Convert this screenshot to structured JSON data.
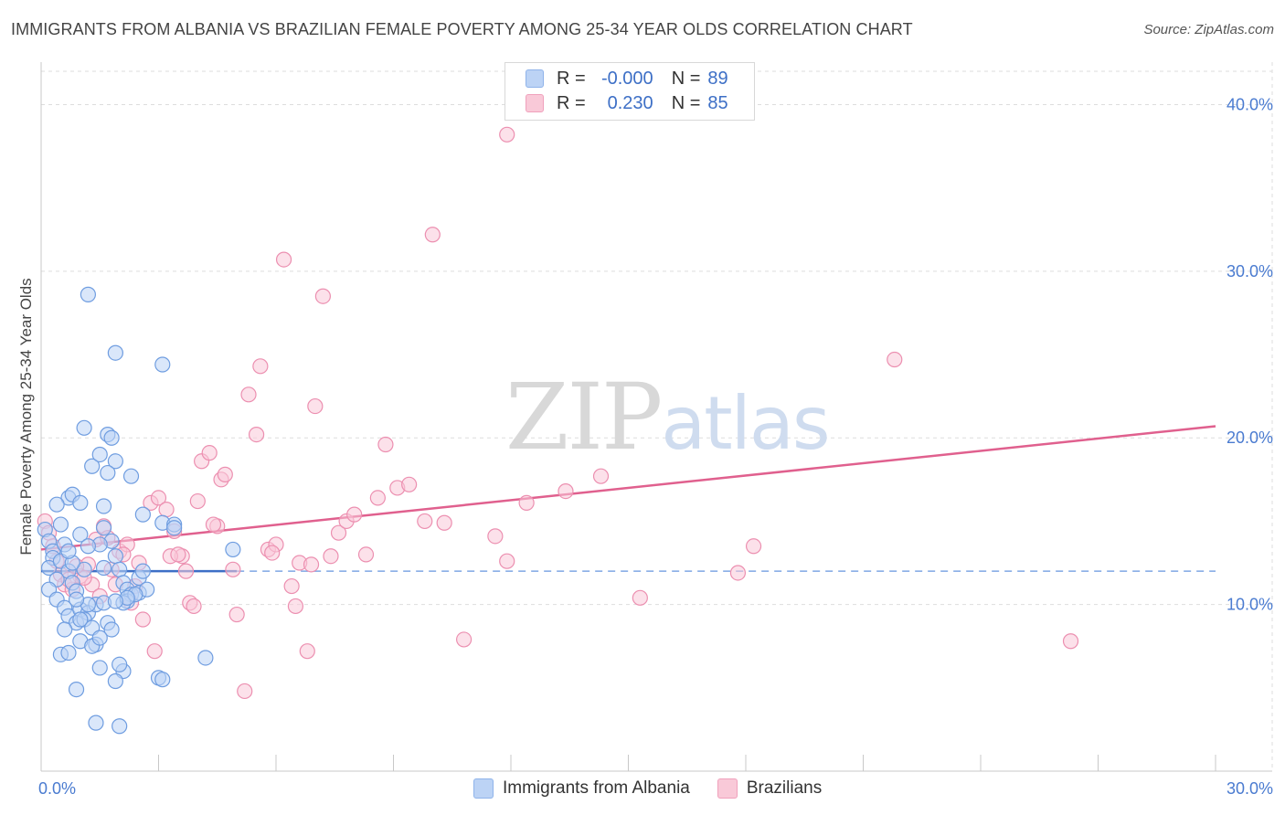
{
  "title": "IMMIGRANTS FROM ALBANIA VS BRAZILIAN FEMALE POVERTY AMONG 25-34 YEAR OLDS CORRELATION CHART",
  "source": "Source: ZipAtlas.com",
  "watermark": {
    "zip": "ZIP",
    "atlas": "atlas"
  },
  "legend": {
    "rows": [
      {
        "r_label": "R =",
        "r_value": "-0.000",
        "n_label": "N =",
        "n_value": "89",
        "color": "#8fb3ea",
        "fill": "#bcd3f5"
      },
      {
        "r_label": "R =",
        "r_value": "0.230",
        "n_label": "N =",
        "n_value": "85",
        "color": "#f0a1bc",
        "fill": "#f9c9d8"
      }
    ]
  },
  "bottom_legend": [
    {
      "label": "Immigrants from Albania",
      "color": "#8fb3ea",
      "fill": "#bcd3f5"
    },
    {
      "label": "Brazilians",
      "color": "#f0a1bc",
      "fill": "#f9c9d8"
    }
  ],
  "chart_data": {
    "type": "scatter",
    "title": "IMMIGRANTS FROM ALBANIA VS BRAZILIAN FEMALE POVERTY AMONG 25-34 YEAR OLDS CORRELATION CHART",
    "xlabel": "",
    "ylabel": "Female Poverty Among 25-34 Year Olds",
    "xlim": [
      0,
      30
    ],
    "ylim": [
      0,
      42
    ],
    "x_tick_labels": [
      "0.0%",
      "30.0%"
    ],
    "y_ticks": [
      10,
      20,
      30,
      40
    ],
    "y_tick_labels": [
      "10.0%",
      "20.0%",
      "30.0%",
      "40.0%"
    ],
    "series": [
      {
        "name": "Immigrants from Albania",
        "color": "#6f9de0",
        "fill": "#bcd3f5",
        "trend": {
          "x": [
            0,
            5
          ],
          "y": [
            12.0,
            12.0
          ],
          "dash_to_x": 30,
          "color": "#3d6fc6"
        },
        "points": [
          [
            0.1,
            14.5
          ],
          [
            0.2,
            13.8
          ],
          [
            0.3,
            13.2
          ],
          [
            0.3,
            12.8
          ],
          [
            0.2,
            12.2
          ],
          [
            0.4,
            11.5
          ],
          [
            0.2,
            10.9
          ],
          [
            0.5,
            14.8
          ],
          [
            0.6,
            13.6
          ],
          [
            0.5,
            12.6
          ],
          [
            0.7,
            12.0
          ],
          [
            0.8,
            11.3
          ],
          [
            0.9,
            10.8
          ],
          [
            0.4,
            10.3
          ],
          [
            0.6,
            9.8
          ],
          [
            0.7,
            9.3
          ],
          [
            1.0,
            9.7
          ],
          [
            1.2,
            9.5
          ],
          [
            0.9,
            8.9
          ],
          [
            1.1,
            9.1
          ],
          [
            0.6,
            8.5
          ],
          [
            1.3,
            8.6
          ],
          [
            1.0,
            7.8
          ],
          [
            1.4,
            7.6
          ],
          [
            0.5,
            7.0
          ],
          [
            0.7,
            7.1
          ],
          [
            1.5,
            6.2
          ],
          [
            2.1,
            6.0
          ],
          [
            1.3,
            7.5
          ],
          [
            2.0,
            6.4
          ],
          [
            0.9,
            4.9
          ],
          [
            1.9,
            5.4
          ],
          [
            1.4,
            2.9
          ],
          [
            2.0,
            2.7
          ],
          [
            3.0,
            5.6
          ],
          [
            3.1,
            5.5
          ],
          [
            4.2,
            6.8
          ],
          [
            1.1,
            20.6
          ],
          [
            1.7,
            20.2
          ],
          [
            1.8,
            20.0
          ],
          [
            1.3,
            18.3
          ],
          [
            1.5,
            19.0
          ],
          [
            1.9,
            18.6
          ],
          [
            1.7,
            17.9
          ],
          [
            2.3,
            17.7
          ],
          [
            0.7,
            16.4
          ],
          [
            0.8,
            16.6
          ],
          [
            1.0,
            16.1
          ],
          [
            1.6,
            15.9
          ],
          [
            0.4,
            16.0
          ],
          [
            2.6,
            15.4
          ],
          [
            3.1,
            14.9
          ],
          [
            3.4,
            14.8
          ],
          [
            1.0,
            14.2
          ],
          [
            1.6,
            14.6
          ],
          [
            1.8,
            13.8
          ],
          [
            1.5,
            13.6
          ],
          [
            1.2,
            13.5
          ],
          [
            1.9,
            12.9
          ],
          [
            2.0,
            12.1
          ],
          [
            1.6,
            12.2
          ],
          [
            2.5,
            11.6
          ],
          [
            2.1,
            11.3
          ],
          [
            2.2,
            10.9
          ],
          [
            2.3,
            10.6
          ],
          [
            2.2,
            10.2
          ],
          [
            2.5,
            10.7
          ],
          [
            2.1,
            10.1
          ],
          [
            1.4,
            10.0
          ],
          [
            1.6,
            10.1
          ],
          [
            1.2,
            10.0
          ],
          [
            0.9,
            10.3
          ],
          [
            1.0,
            9.1
          ],
          [
            1.7,
            8.9
          ],
          [
            1.8,
            8.5
          ],
          [
            1.5,
            8.0
          ],
          [
            1.1,
            12.1
          ],
          [
            0.8,
            12.5
          ],
          [
            0.7,
            13.2
          ],
          [
            4.9,
            13.3
          ],
          [
            3.1,
            24.4
          ],
          [
            1.9,
            25.1
          ],
          [
            1.2,
            28.6
          ],
          [
            3.4,
            14.6
          ],
          [
            2.6,
            12.0
          ],
          [
            2.7,
            10.9
          ],
          [
            2.4,
            10.6
          ],
          [
            2.2,
            10.4
          ],
          [
            1.9,
            10.2
          ]
        ]
      },
      {
        "name": "Brazilians",
        "color": "#ec8fb0",
        "fill": "#f9c9d8",
        "trend": {
          "x": [
            0,
            30
          ],
          "y": [
            13.3,
            20.7
          ],
          "color": "#e0608e"
        },
        "points": [
          [
            0.1,
            15.0
          ],
          [
            0.2,
            14.3
          ],
          [
            0.3,
            13.5
          ],
          [
            0.4,
            12.6
          ],
          [
            0.5,
            11.8
          ],
          [
            0.6,
            11.2
          ],
          [
            0.8,
            10.9
          ],
          [
            1.0,
            11.7
          ],
          [
            1.2,
            12.4
          ],
          [
            1.4,
            13.9
          ],
          [
            1.6,
            14.7
          ],
          [
            1.8,
            12.1
          ],
          [
            2.0,
            13.2
          ],
          [
            2.2,
            13.6
          ],
          [
            2.4,
            11.1
          ],
          [
            2.6,
            9.1
          ],
          [
            2.8,
            16.1
          ],
          [
            3.0,
            16.4
          ],
          [
            3.2,
            15.7
          ],
          [
            3.4,
            14.4
          ],
          [
            3.6,
            12.9
          ],
          [
            3.7,
            12.0
          ],
          [
            3.8,
            10.1
          ],
          [
            3.9,
            9.9
          ],
          [
            4.0,
            16.2
          ],
          [
            4.1,
            18.6
          ],
          [
            4.3,
            19.1
          ],
          [
            4.5,
            14.7
          ],
          [
            4.6,
            17.5
          ],
          [
            4.7,
            17.8
          ],
          [
            4.9,
            12.1
          ],
          [
            5.0,
            9.4
          ],
          [
            5.2,
            4.8
          ],
          [
            5.3,
            22.6
          ],
          [
            5.5,
            20.2
          ],
          [
            5.6,
            24.3
          ],
          [
            5.8,
            13.3
          ],
          [
            6.0,
            13.6
          ],
          [
            6.2,
            30.7
          ],
          [
            6.4,
            11.1
          ],
          [
            6.5,
            9.9
          ],
          [
            6.6,
            12.5
          ],
          [
            6.8,
            7.2
          ],
          [
            7.0,
            21.9
          ],
          [
            7.2,
            28.5
          ],
          [
            7.4,
            12.9
          ],
          [
            7.6,
            14.3
          ],
          [
            7.8,
            15.0
          ],
          [
            8.0,
            15.4
          ],
          [
            8.3,
            13.0
          ],
          [
            8.6,
            16.4
          ],
          [
            8.8,
            19.6
          ],
          [
            9.1,
            17.0
          ],
          [
            9.4,
            17.2
          ],
          [
            9.8,
            15.0
          ],
          [
            10.0,
            32.2
          ],
          [
            10.3,
            14.9
          ],
          [
            10.8,
            7.9
          ],
          [
            11.6,
            14.1
          ],
          [
            11.9,
            12.6
          ],
          [
            12.4,
            16.1
          ],
          [
            13.4,
            16.8
          ],
          [
            14.3,
            17.7
          ],
          [
            15.3,
            10.4
          ],
          [
            17.8,
            11.9
          ],
          [
            18.2,
            13.5
          ],
          [
            21.8,
            24.7
          ],
          [
            26.3,
            7.8
          ],
          [
            11.9,
            38.2
          ],
          [
            2.9,
            7.2
          ],
          [
            3.3,
            12.9
          ],
          [
            1.3,
            11.2
          ],
          [
            1.1,
            11.6
          ],
          [
            0.9,
            12.3
          ],
          [
            0.7,
            11.5
          ],
          [
            1.5,
            10.5
          ],
          [
            1.9,
            11.2
          ],
          [
            2.3,
            10.1
          ],
          [
            1.7,
            14.0
          ],
          [
            2.1,
            13.0
          ],
          [
            4.4,
            14.8
          ],
          [
            5.9,
            13.1
          ],
          [
            6.9,
            12.4
          ],
          [
            3.5,
            13.0
          ],
          [
            2.5,
            12.5
          ]
        ]
      }
    ]
  }
}
